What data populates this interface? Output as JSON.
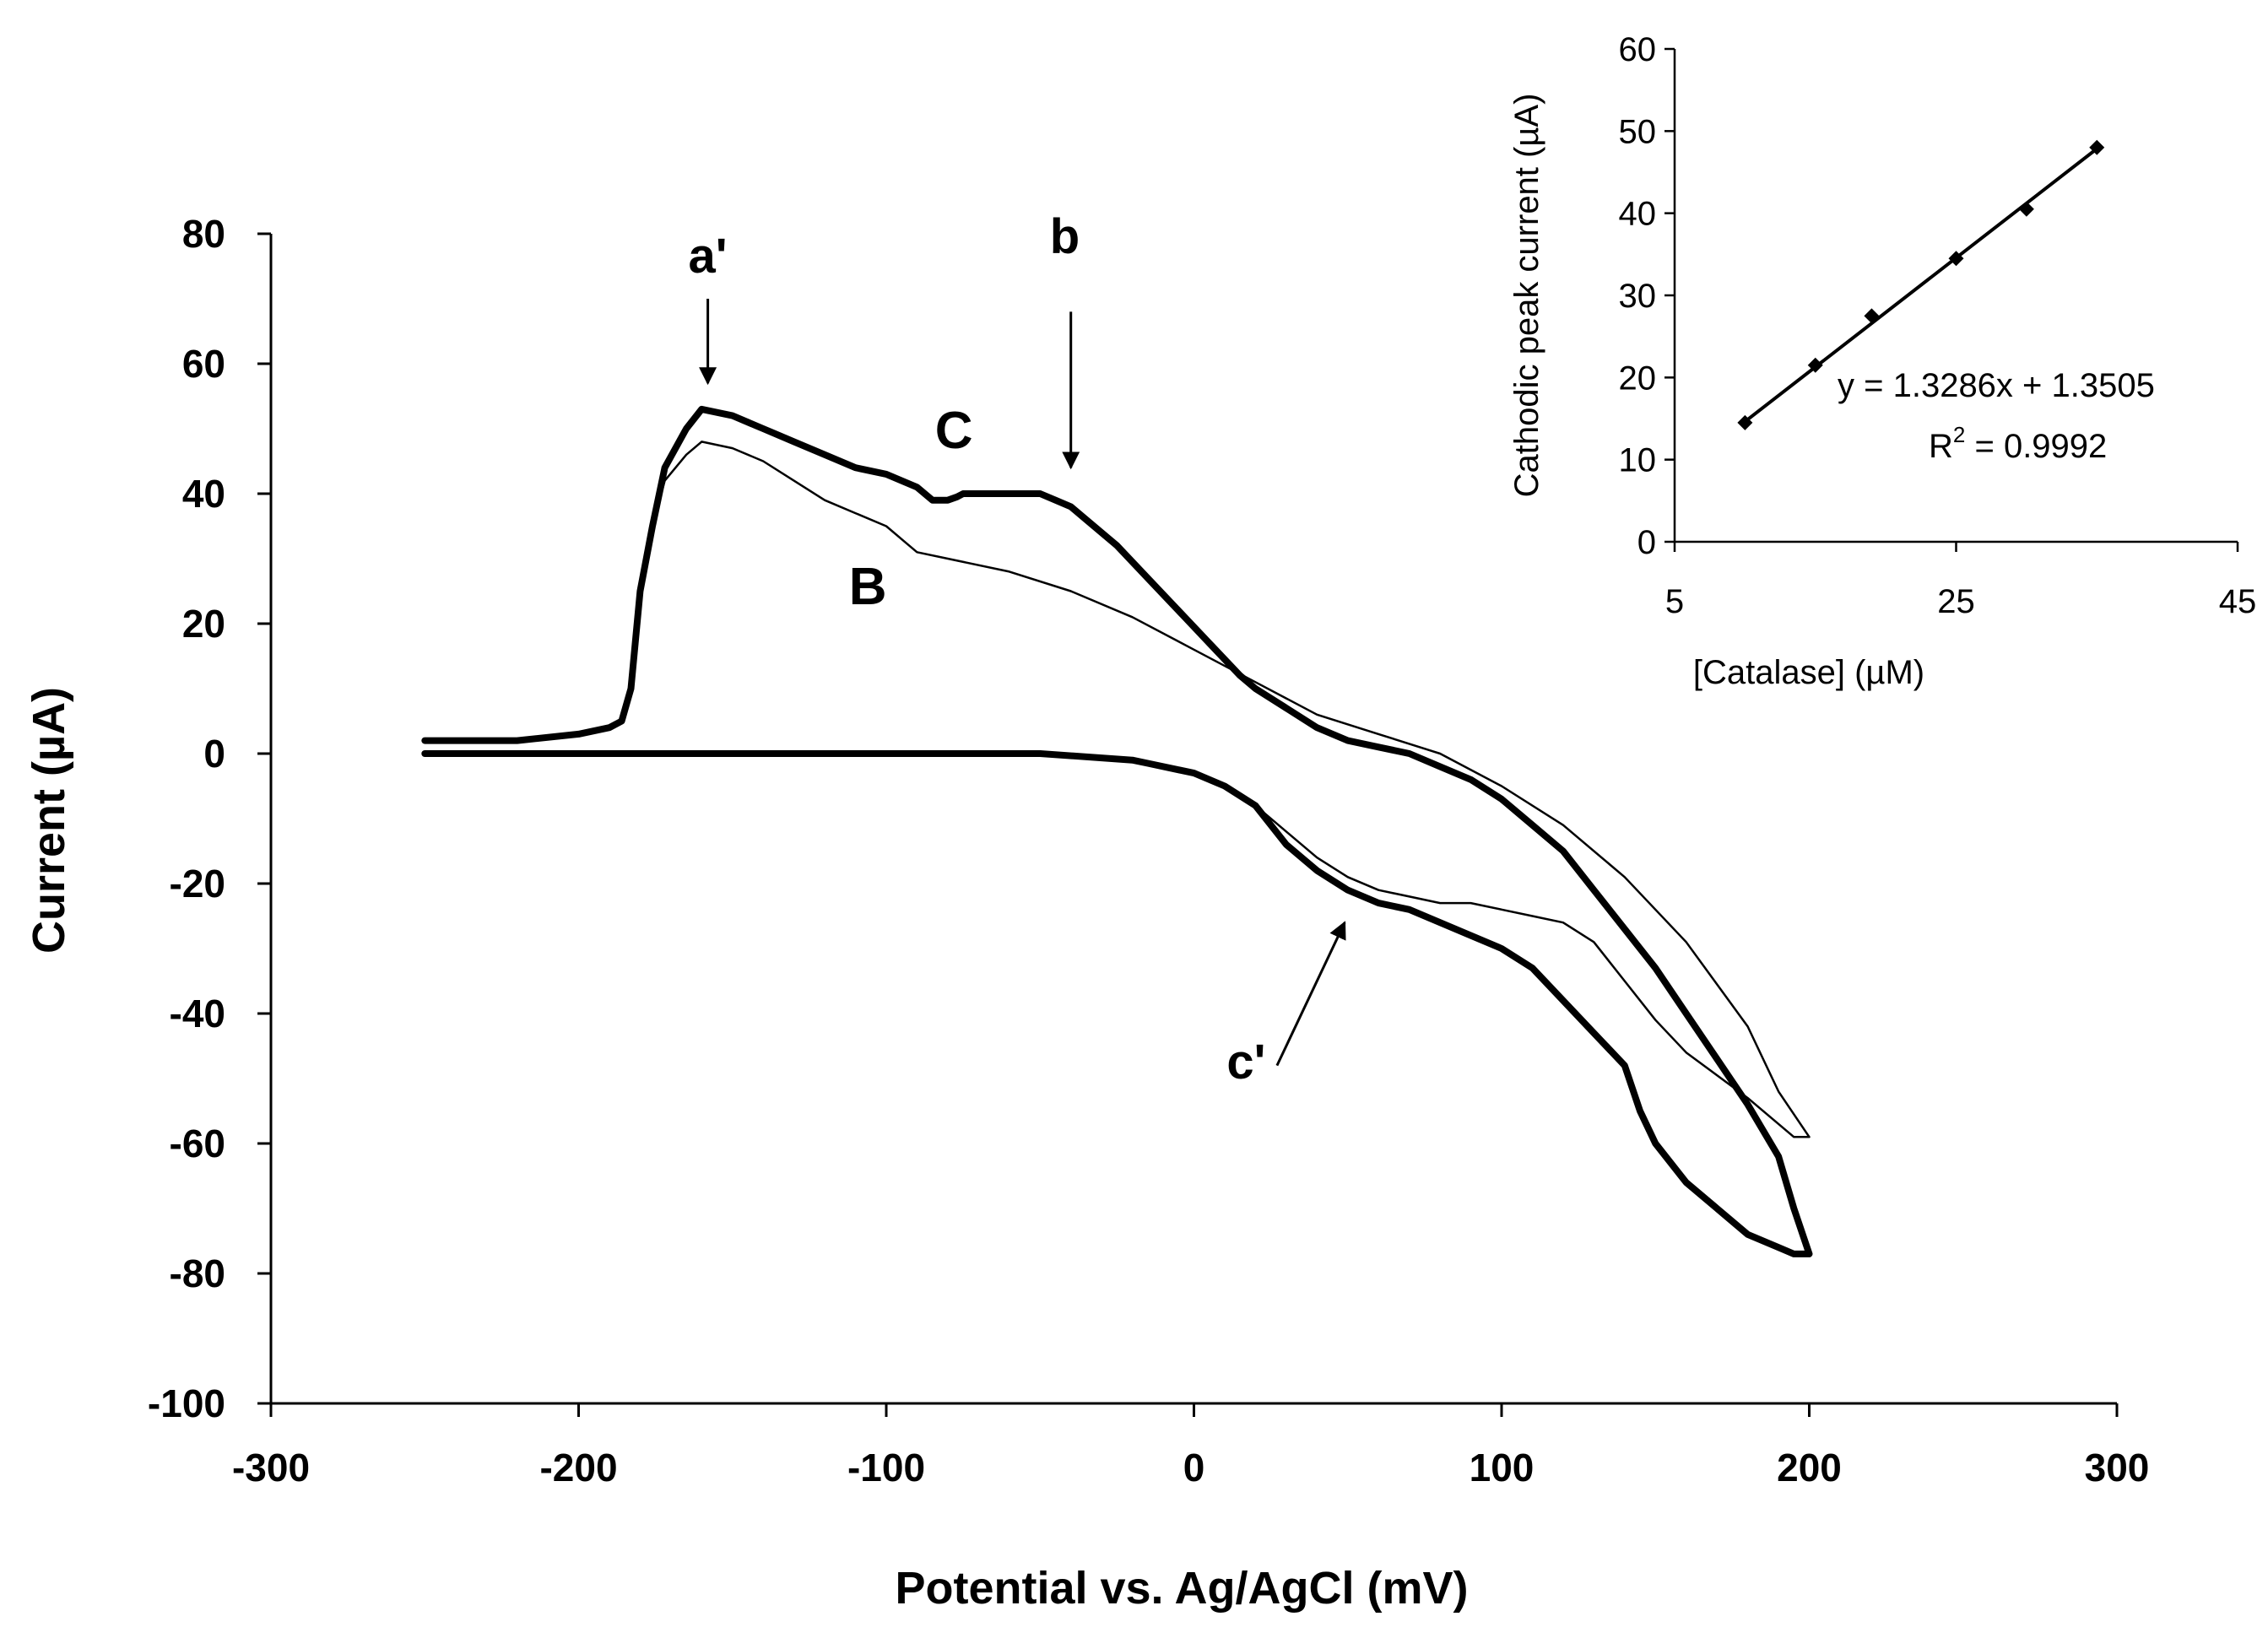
{
  "chart_data": [
    {
      "type": "line",
      "xlabel": "Potential vs. Ag/AgCl (mV)",
      "ylabel": "Current (µA)",
      "xlim": [
        -300,
        300
      ],
      "ylim": [
        -100,
        80
      ],
      "xticks": [
        -300,
        -200,
        -100,
        0,
        100,
        200,
        300
      ],
      "yticks": [
        80,
        60,
        40,
        20,
        0,
        -20,
        -40,
        -60,
        -80,
        -100
      ],
      "xtick_labels": [
        "-300",
        "-200",
        "-100",
        "0",
        "100",
        "200",
        "300"
      ],
      "ytick_labels": [
        "80",
        "60",
        "40",
        "20",
        "0",
        "-20",
        "-40",
        "-60",
        "-80",
        "-100"
      ],
      "grid": false,
      "series": [
        {
          "name": "C",
          "style": "thick",
          "x": [
            -250,
            -220,
            -200,
            -190,
            -186,
            -183,
            -180,
            -176,
            -172,
            -165,
            -160,
            -150,
            -140,
            -130,
            -120,
            -110,
            -100,
            -90,
            -85,
            -80,
            -77,
            -75,
            -70,
            -60,
            -50,
            -45,
            -40,
            -35,
            -25,
            -15,
            -5,
            5,
            15,
            20,
            30,
            40,
            50,
            60,
            70,
            80,
            90,
            100,
            110,
            120,
            130,
            140,
            150,
            160,
            170,
            180,
            190,
            195,
            200,
            195,
            190,
            180,
            170,
            160,
            150,
            145,
            140,
            130,
            120,
            110,
            100,
            90,
            80,
            70,
            60,
            50,
            40,
            30,
            20,
            10,
            0,
            -15,
            -20,
            -50,
            -100,
            -150,
            -200,
            -220,
            -250
          ],
          "y": [
            2,
            2,
            3,
            4,
            5,
            10,
            25,
            35,
            44,
            50,
            53,
            52,
            50,
            48,
            46,
            44,
            43,
            41,
            39,
            39,
            39.5,
            40,
            40,
            40,
            40,
            39,
            38,
            36,
            32,
            27,
            22,
            17,
            12,
            10,
            7,
            4,
            2,
            1,
            0,
            -2,
            -4,
            -7,
            -11,
            -15,
            -21,
            -27,
            -33,
            -40,
            -47,
            -54,
            -62,
            -70,
            -77,
            -77,
            -76,
            -74,
            -70,
            -66,
            -60,
            -55,
            -48,
            -43,
            -38,
            -33,
            -30,
            -28,
            -26,
            -24,
            -23,
            -21,
            -18,
            -14,
            -8,
            -5,
            -3,
            -1.5,
            -1,
            0,
            0,
            0,
            0,
            0,
            0
          ]
        },
        {
          "name": "B",
          "style": "thin",
          "x": [
            -250,
            -220,
            -200,
            -190,
            -186,
            -183,
            -180,
            -176,
            -172,
            -165,
            -160,
            -150,
            -140,
            -130,
            -120,
            -110,
            -100,
            -95,
            -90,
            -80,
            -60,
            -40,
            -20,
            0,
            20,
            40,
            60,
            80,
            100,
            120,
            140,
            160,
            180,
            190,
            200,
            195,
            180,
            160,
            150,
            140,
            130,
            120,
            110,
            100,
            90,
            80,
            70,
            60,
            50,
            40,
            30,
            20,
            10,
            0,
            -15,
            -20,
            -50,
            -100,
            -150,
            -200,
            -220,
            -250
          ],
          "y": [
            2,
            2,
            3,
            4,
            5,
            10,
            25,
            35,
            42,
            46,
            48,
            47,
            45,
            42,
            39,
            37,
            35,
            33,
            31,
            30,
            28,
            25,
            21,
            16,
            11,
            6,
            3,
            0,
            -5,
            -11,
            -19,
            -29,
            -42,
            -52,
            -59,
            -59,
            -53,
            -46,
            -41,
            -35,
            -29,
            -26,
            -25,
            -24,
            -23,
            -23,
            -22,
            -21,
            -19,
            -16,
            -12,
            -8,
            -5,
            -3,
            -1.5,
            -1,
            0,
            0,
            0,
            0,
            0,
            0
          ]
        }
      ],
      "annotations": [
        {
          "text": "a'",
          "arrow_from": [
            -158,
            70
          ],
          "arrow_to": [
            -158,
            57
          ],
          "label_at": [
            -158,
            74
          ]
        },
        {
          "text": "b",
          "arrow_from": [
            -40,
            68
          ],
          "arrow_to": [
            -40,
            44
          ],
          "label_at": [
            -42,
            77
          ]
        },
        {
          "text": "c'",
          "arrow_from": [
            27,
            -48
          ],
          "arrow_to": [
            49,
            -26
          ],
          "label_at": [
            17,
            -50
          ]
        },
        {
          "text": "C",
          "label_at": [
            -78,
            47
          ]
        },
        {
          "text": "B",
          "label_at": [
            -106,
            23
          ]
        }
      ]
    },
    {
      "type": "scatter",
      "xlabel": "[Catalase] (µM)",
      "ylabel": "Cathodic peak current (µA)",
      "xlim": [
        5,
        45
      ],
      "ylim": [
        0,
        60
      ],
      "xticks": [
        5,
        25,
        45
      ],
      "yticks": [
        0,
        10,
        20,
        30,
        40,
        50,
        60
      ],
      "xtick_labels": [
        "5",
        "25",
        "45"
      ],
      "ytick_labels": [
        "0",
        "10",
        "20",
        "30",
        "40",
        "50",
        "60"
      ],
      "grid": false,
      "x": [
        10,
        15,
        19,
        25,
        30,
        35
      ],
      "y": [
        14.5,
        21.5,
        27.5,
        34.5,
        40.5,
        48
      ],
      "trendline": {
        "slope": 1.3286,
        "intercept": 1.3505,
        "x_range": [
          10,
          35
        ]
      },
      "equation_text": "y = 1.3286x + 1.3505",
      "r2_prefix": "R",
      "r2_sup": "2",
      "r2_suffix": " = 0.9992"
    }
  ]
}
